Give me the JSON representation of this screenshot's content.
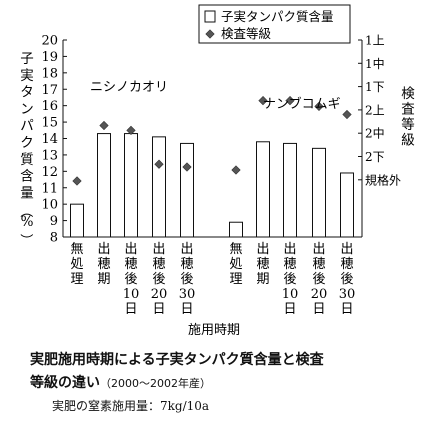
{
  "chart_data": {
    "type": "bar",
    "xlabel": "施用時期",
    "ylabel_left": "子実タンパク質含量（%）",
    "ylabel_right": "検査等級",
    "ylim": [
      8,
      20
    ],
    "yticks_left": [
      "8",
      "9",
      "10",
      "11",
      "12",
      "13",
      "14",
      "15",
      "16",
      "17",
      "18",
      "19",
      "20"
    ],
    "yticks_right": [
      "1上",
      "1中",
      "1下",
      "2上",
      "2中",
      "2下",
      "規格外"
    ],
    "legend": {
      "bar": "子実タンパク質含量",
      "marker": "検査等級",
      "position": "top-right"
    },
    "groups": [
      {
        "name": "ニシノカオリ",
        "categories": [
          [
            "無",
            "処",
            "理"
          ],
          [
            "出",
            "穂",
            "期"
          ],
          [
            "出",
            "穂",
            "後",
            "10",
            "日"
          ],
          [
            "出",
            "穂",
            "後",
            "20",
            "日"
          ],
          [
            "出",
            "穂",
            "後",
            "30",
            "日"
          ]
        ],
        "protein": [
          10.0,
          14.3,
          14.3,
          14.1,
          13.7
        ],
        "grade": [
          6.05,
          3.67,
          3.88,
          5.33,
          5.45
        ]
      },
      {
        "name": "ナンブコムギ",
        "categories": [
          [
            "無",
            "処",
            "理"
          ],
          [
            "出",
            "穂",
            "期"
          ],
          [
            "出",
            "穂",
            "後",
            "10",
            "日"
          ],
          [
            "出",
            "穂",
            "後",
            "20",
            "日"
          ],
          [
            "出",
            "穂",
            "後",
            "30",
            "日"
          ]
        ],
        "protein": [
          8.9,
          13.8,
          13.7,
          13.4,
          11.9
        ],
        "grade": [
          5.58,
          2.6,
          2.6,
          2.85,
          3.2
        ]
      }
    ]
  },
  "caption": {
    "line1": "実肥施用時期による子実タンパク質含量と検査",
    "line2_main": "等級の違い",
    "line2_sub": "（2000～2002年産）",
    "line3": "実肥の窒素施用量：7kg/10a"
  }
}
